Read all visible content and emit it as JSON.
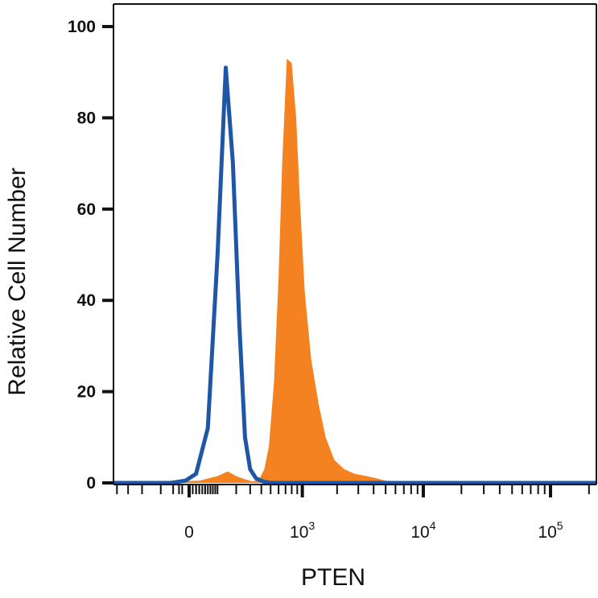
{
  "chart_data": {
    "type": "area",
    "xlabel": "PTEN",
    "ylabel": "Relative Cell Number",
    "ylim": [
      0,
      100
    ],
    "xscale": "biexponential",
    "grid": false,
    "yticks": [
      "0",
      "20",
      "40",
      "60",
      "80",
      "100"
    ],
    "xticks": [
      {
        "base": "0",
        "exp": ""
      },
      {
        "base": "10",
        "exp": "3"
      },
      {
        "base": "10",
        "exp": "4"
      },
      {
        "base": "10",
        "exp": "5"
      }
    ],
    "colors": {
      "isotype": "#1f56a6",
      "stained": "#f58220"
    },
    "series": [
      {
        "style": "outline",
        "color": "#1f56a6",
        "x": [
          -1000,
          -200,
          -60,
          -10,
          20,
          60,
          100,
          140,
          180,
          220,
          260,
          300,
          350,
          420,
          500,
          5000,
          500000
        ],
        "values": [
          0,
          0,
          0,
          0.5,
          2,
          12,
          50,
          91,
          70,
          35,
          10,
          3,
          1,
          0.3,
          0,
          0,
          0
        ]
      },
      {
        "style": "filled",
        "color": "#f58220",
        "x": [
          -1000,
          30,
          100,
          150,
          200,
          260,
          320,
          380,
          430,
          480,
          540,
          600,
          650,
          720,
          800,
          880,
          950,
          1050,
          1200,
          1400,
          1600,
          1900,
          2300,
          2800,
          3500,
          4200,
          5000,
          6000,
          500000
        ],
        "values": [
          0,
          0.5,
          1.5,
          2.5,
          1.5,
          0.8,
          0.3,
          0.8,
          3,
          8,
          22,
          45,
          70,
          93,
          92,
          80,
          62,
          42,
          27,
          17,
          10,
          5,
          3,
          2,
          1.5,
          1,
          0.5,
          0,
          0
        ]
      }
    ]
  }
}
